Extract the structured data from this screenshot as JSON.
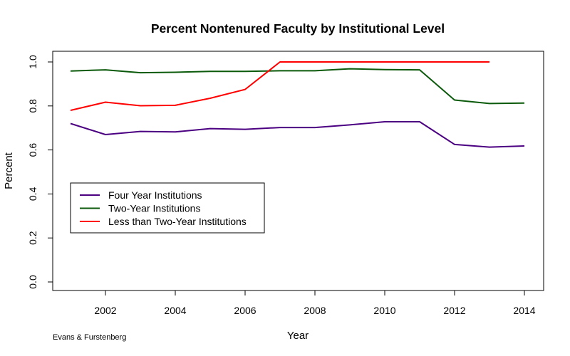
{
  "chart_data": {
    "type": "line",
    "title": "Percent Nontenured Faculty by Institutional Level",
    "xlabel": "Year",
    "ylabel": "Percent",
    "xlim": [
      2001,
      2014
    ],
    "ylim": [
      0.0,
      1.0
    ],
    "x_ticks": [
      2002,
      2004,
      2006,
      2008,
      2010,
      2012,
      2014
    ],
    "x_tick_labels": [
      "2002",
      "2004",
      "2006",
      "2008",
      "2010",
      "2012",
      "2014"
    ],
    "y_ticks": [
      0.0,
      0.2,
      0.4,
      0.6,
      0.8,
      1.0
    ],
    "y_tick_labels": [
      "0.0",
      "0.2",
      "0.4",
      "0.6",
      "0.8",
      "1.0"
    ],
    "grid": false,
    "legend_position": "middle-left",
    "series": [
      {
        "name": "Four Year Institutions",
        "color": "#4b0082",
        "x": [
          2001,
          2002,
          2003,
          2004,
          2005,
          2006,
          2007,
          2008,
          2009,
          2010,
          2011,
          2012,
          2013,
          2014
        ],
        "values": [
          0.72,
          0.67,
          0.684,
          0.682,
          0.697,
          0.694,
          0.702,
          0.702,
          0.714,
          0.728,
          0.728,
          0.625,
          0.613,
          0.618
        ]
      },
      {
        "name": "Two-Year Institutions",
        "color": "#0b5a0b",
        "x": [
          2001,
          2002,
          2003,
          2004,
          2005,
          2006,
          2007,
          2008,
          2009,
          2010,
          2011,
          2012,
          2013,
          2014
        ],
        "values": [
          0.959,
          0.964,
          0.951,
          0.953,
          0.957,
          0.957,
          0.96,
          0.96,
          0.969,
          0.965,
          0.964,
          0.827,
          0.811,
          0.813
        ]
      },
      {
        "name": "Less than Two-Year Institutions",
        "color": "#ff0000",
        "x": [
          2001,
          2002,
          2003,
          2004,
          2005,
          2006,
          2007,
          2008,
          2009,
          2010,
          2011,
          2012,
          2013
        ],
        "values": [
          0.78,
          0.817,
          0.801,
          0.803,
          0.835,
          0.875,
          1.0,
          1.0,
          1.0,
          1.0,
          1.0,
          1.0,
          1.0
        ]
      }
    ],
    "credit": "Evans & Furstenberg"
  }
}
